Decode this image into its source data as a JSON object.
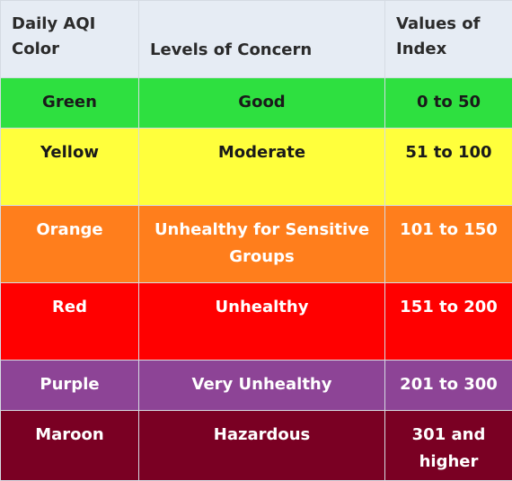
{
  "header": {
    "color": "Daily AQI Color",
    "concern": "Levels of Concern",
    "values": "Values of Index"
  },
  "rows": [
    {
      "color": "Green",
      "concern": "Good",
      "values": "0 to 50",
      "bg": "#2ee040",
      "fg": "#1a1a1a"
    },
    {
      "color": "Yellow",
      "concern": "Moderate",
      "values": "51 to 100",
      "bg": "#ffff3c",
      "fg": "#1a1a1a"
    },
    {
      "color": "Orange",
      "concern": "Unhealthy for Sensitive Groups",
      "values": "101 to 150",
      "bg": "#ff7e1c",
      "fg": "#ffffff"
    },
    {
      "color": "Red",
      "concern": "Unhealthy",
      "values": "151 to 200",
      "bg": "#ff0000",
      "fg": "#ffffff"
    },
    {
      "color": "Purple",
      "concern": "Very Unhealthy",
      "values": "201 to 300",
      "bg": "#8d4496",
      "fg": "#ffffff"
    },
    {
      "color": "Maroon",
      "concern": "Hazardous",
      "values": "301 and higher",
      "bg": "#7a0023",
      "fg": "#ffffff"
    }
  ]
}
